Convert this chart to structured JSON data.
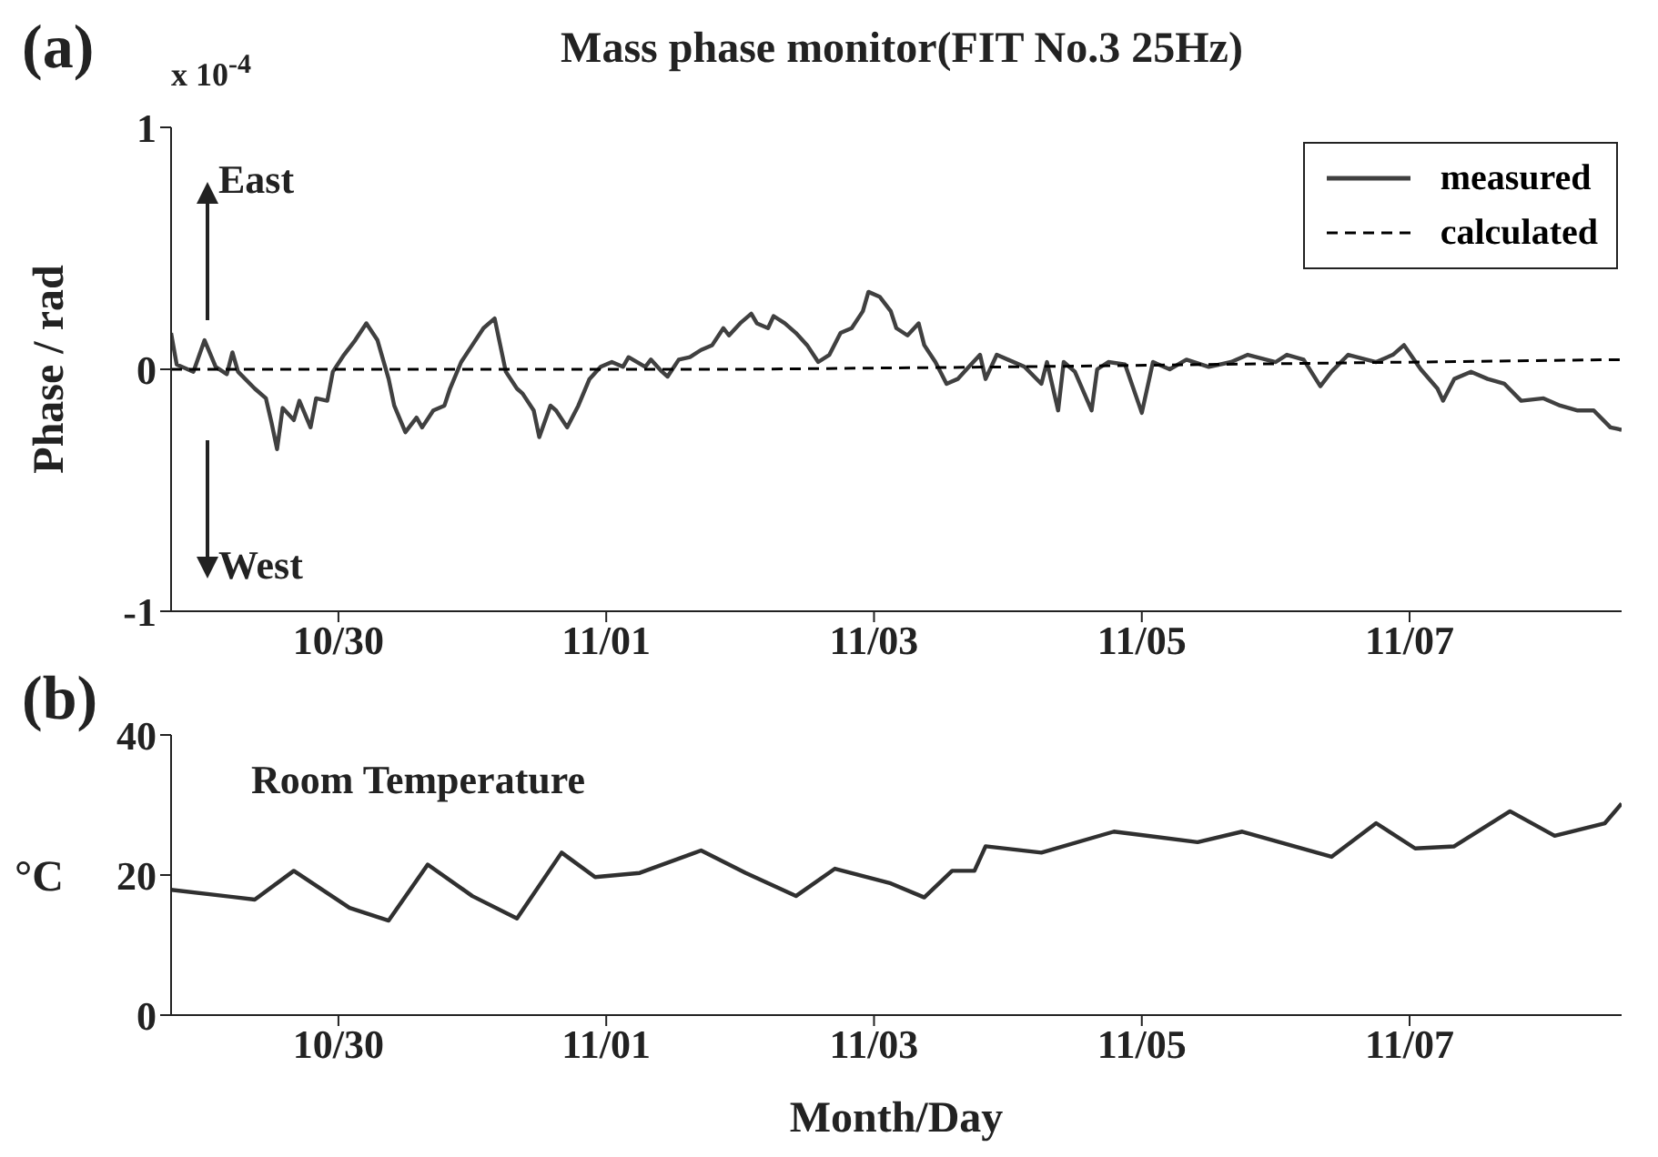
{
  "chart_data": [
    {
      "type": "line",
      "title": "Mass phase monitor(FIT No.3 25Hz)",
      "ylabel": "Phase / rad",
      "annotations": [
        "(a)",
        "x 10$^{-4}$",
        "East",
        "West"
      ],
      "series": [
        {
          "name": "measured",
          "color": "#404040",
          "line_style": "solid",
          "x": [
            "--10-28T18:00",
            "--10-28T19:00",
            "--10-28T22:00",
            "--10-29T00:00",
            "--10-29T02:00",
            "--10-29T04:00",
            "--10-29T05:00",
            "--10-29T06:00",
            "--10-29T09:00",
            "--10-29T11:00",
            "--10-29T12:00",
            "--10-29T13:00",
            "--10-29T14:00",
            "--10-29T16:00",
            "--10-29T17:00",
            "--10-29T19:00",
            "--10-29T20:00",
            "--10-29T22:00",
            "--10-29T23:00",
            "--10-30T01:00",
            "--10-30T03:00",
            "--10-30T05:00",
            "--10-30T07:00",
            "--10-30T09:00",
            "--10-30T10:00",
            "--10-30T12:00",
            "--10-30T14:00",
            "--10-30T15:00",
            "--10-30T17:00",
            "--10-30T19:00",
            "--10-30T20:00",
            "--10-30T22:00",
            "--10-31T00:00",
            "--10-31T02:00",
            "--10-31T04:00",
            "--10-31T05:00",
            "--10-31T06:00",
            "--10-31T08:00",
            "--10-31T09:00",
            "--10-31T11:00",
            "--10-31T12:00",
            "--10-31T14:00",
            "--10-31T15:00",
            "--10-31T17:00",
            "--10-31T19:00",
            "--10-31T21:00",
            "--10-31T23:00",
            "--11-01T01:00",
            "--11-01T03:00",
            "--11-01T04:00",
            "--11-01T07:00",
            "--11-01T08:00",
            "--11-01T10:00",
            "--11-01T11:00",
            "--11-01T13:00",
            "--11-01T15:00",
            "--11-01T17:00",
            "--11-01T19:00",
            "--11-01T21:00",
            "--11-01T22:00",
            "--11-02T00:00",
            "--11-02T02:00",
            "--11-02T03:00",
            "--11-02T05:00",
            "--11-02T06:00",
            "--11-02T08:00",
            "--11-02T10:00",
            "--11-02T12:00",
            "--11-02T14:00",
            "--11-02T16:00",
            "--11-02T18:00",
            "--11-02T20:00",
            "--11-02T22:00",
            "--11-02T23:00",
            "--11-03T01:00",
            "--11-03T03:00",
            "--11-03T04:00",
            "--11-03T06:00",
            "--11-03T08:00",
            "--11-03T09:00",
            "--11-03T11:00",
            "--11-03T13:00",
            "--11-03T15:00",
            "--11-03T17:00",
            "--11-03T19:00",
            "--11-03T20:00",
            "--11-03T22:00",
            "--11-04T00:00",
            "--11-04T03:00",
            "--11-04T06:00",
            "--11-04T07:00",
            "--11-04T09:00",
            "--11-04T10:00",
            "--11-04T12:00",
            "--11-04T15:00",
            "--11-04T16:00",
            "--11-04T18:00",
            "--11-04T21:00",
            "--11-05T00:00",
            "--11-05T02:00",
            "--11-05T05:00",
            "--11-05T08:00",
            "--11-05T12:00",
            "--11-05T16:00",
            "--11-05T19:00",
            "--11-06T00:00",
            "--11-06T02:00",
            "--11-06T05:00",
            "--11-06T08:00",
            "--11-06T10:00",
            "--11-06T13:00",
            "--11-06T18:00",
            "--11-06T21:00",
            "--11-06T23:00",
            "--11-07T02:00",
            "--11-07T05:00",
            "--11-07T06:00",
            "--11-07T08:00",
            "--11-07T11:00",
            "--11-07T14:00",
            "--11-07T17:00",
            "--11-07T20:00",
            "--11-08T00:00",
            "--11-08T03:00",
            "--11-08T06:00",
            "--11-08T09:00",
            "--11-08T12:00",
            "--11-08T14:00"
          ],
          "values": [
            0.15,
            0.02,
            -0.01,
            0.12,
            0.01,
            -0.02,
            0.07,
            -0.01,
            -0.08,
            -0.12,
            -0.22,
            -0.33,
            -0.16,
            -0.21,
            -0.13,
            -0.24,
            -0.12,
            -0.13,
            -0.01,
            0.06,
            0.12,
            0.19,
            0.12,
            -0.04,
            -0.15,
            -0.26,
            -0.2,
            -0.24,
            -0.17,
            -0.15,
            -0.08,
            0.03,
            0.1,
            0.17,
            0.21,
            0.1,
            -0.01,
            -0.08,
            -0.1,
            -0.17,
            -0.28,
            -0.15,
            -0.17,
            -0.24,
            -0.15,
            -0.04,
            0.01,
            0.03,
            0.01,
            0.05,
            0.01,
            0.04,
            -0.01,
            -0.03,
            0.04,
            0.05,
            0.08,
            0.1,
            0.17,
            0.14,
            0.19,
            0.23,
            0.19,
            0.17,
            0.22,
            0.19,
            0.15,
            0.1,
            0.03,
            0.06,
            0.15,
            0.17,
            0.24,
            0.32,
            0.3,
            0.24,
            0.17,
            0.14,
            0.19,
            0.1,
            0.03,
            -0.06,
            -0.04,
            0.01,
            0.06,
            -0.04,
            0.06,
            0.04,
            0.01,
            -0.06,
            0.03,
            -0.17,
            0.03,
            -0.01,
            -0.17,
            0.0,
            0.03,
            0.02,
            -0.18,
            0.03,
            0.0,
            0.04,
            0.01,
            0.03,
            0.06,
            0.03,
            0.06,
            0.04,
            -0.07,
            -0.01,
            0.06,
            0.03,
            0.06,
            0.1,
            0.0,
            -0.08,
            -0.13,
            -0.04,
            -0.01,
            -0.04,
            -0.06,
            -0.13,
            -0.12,
            -0.15,
            -0.17,
            -0.17,
            -0.24,
            -0.25
          ]
        },
        {
          "name": "calculated",
          "color": "#000000",
          "line_style": "dashed",
          "x": [
            "--10-28T18:00",
            "--11-02T00:00",
            "--11-04T00:00",
            "--11-08T14:00"
          ],
          "values": [
            0.0,
            0.0,
            0.01,
            0.04
          ]
        }
      ],
      "xlim": [
        "--10-28T18:00",
        "--11-08T14:00"
      ],
      "xticks": [
        {
          "value": "--10-30",
          "label": "10/30"
        },
        {
          "value": "--11-01",
          "label": "11/01"
        },
        {
          "value": "--11-03",
          "label": "11/03"
        },
        {
          "value": "--11-05",
          "label": "11/05"
        },
        {
          "value": "--11-07",
          "label": "11/07"
        }
      ],
      "ylim": [
        -1,
        1
      ],
      "yticks": [
        -1,
        0,
        1
      ],
      "grid": false,
      "legend": "top right",
      "marker": "none"
    },
    {
      "type": "line",
      "xlabel": "Month/Day",
      "ylabel": "°C",
      "annotations": [
        "(b)",
        "Room Temperature"
      ],
      "series": [
        {
          "color": "#303030",
          "x": [
            "--10-28T18:00",
            "--10-29T09:00",
            "--10-29T16:00",
            "--10-30T02:00",
            "--10-30T09:00",
            "--10-30T16:00",
            "--10-31T00:00",
            "--10-31T08:00",
            "--10-31T16:00",
            "--10-31T22:00",
            "--11-01T06:00",
            "--11-01T17:00",
            "--11-02T01:00",
            "--11-02T10:00",
            "--11-02T17:00",
            "--11-03T03:00",
            "--11-03T09:00",
            "--11-03T14:00",
            "--11-03T18:00",
            "--11-03T20:00",
            "--11-04T06:00",
            "--11-04T19:00",
            "--11-05T10:00",
            "--11-05T18:00",
            "--11-06T10:00",
            "--11-06T18:00",
            "--11-07T01:00",
            "--11-07T08:00",
            "--11-07T18:00",
            "--11-08T02:00",
            "--11-08T11:00",
            "--11-08T14:00"
          ],
          "values": [
            17.9,
            16.5,
            20.6,
            15.3,
            13.5,
            21.5,
            17.0,
            13.8,
            23.2,
            19.7,
            20.3,
            23.5,
            20.3,
            17.0,
            20.9,
            18.8,
            16.8,
            20.6,
            20.6,
            24.1,
            23.2,
            26.2,
            24.7,
            26.2,
            22.6,
            27.4,
            23.8,
            24.1,
            29.1,
            25.6,
            27.4,
            30.2
          ]
        }
      ],
      "xlim": [
        "--10-28T18:00",
        "--11-08T14:00"
      ],
      "xticks": [
        {
          "value": "--10-30",
          "label": "10/30"
        },
        {
          "value": "--11-01",
          "label": "11/01"
        },
        {
          "value": "--11-03",
          "label": "11/03"
        },
        {
          "value": "--11-05",
          "label": "11/05"
        },
        {
          "value": "--11-07",
          "label": "11/07"
        }
      ],
      "ylim": [
        0,
        40
      ],
      "yticks": [
        0,
        20,
        40
      ],
      "grid": false,
      "legend": false,
      "marker": "none"
    }
  ]
}
